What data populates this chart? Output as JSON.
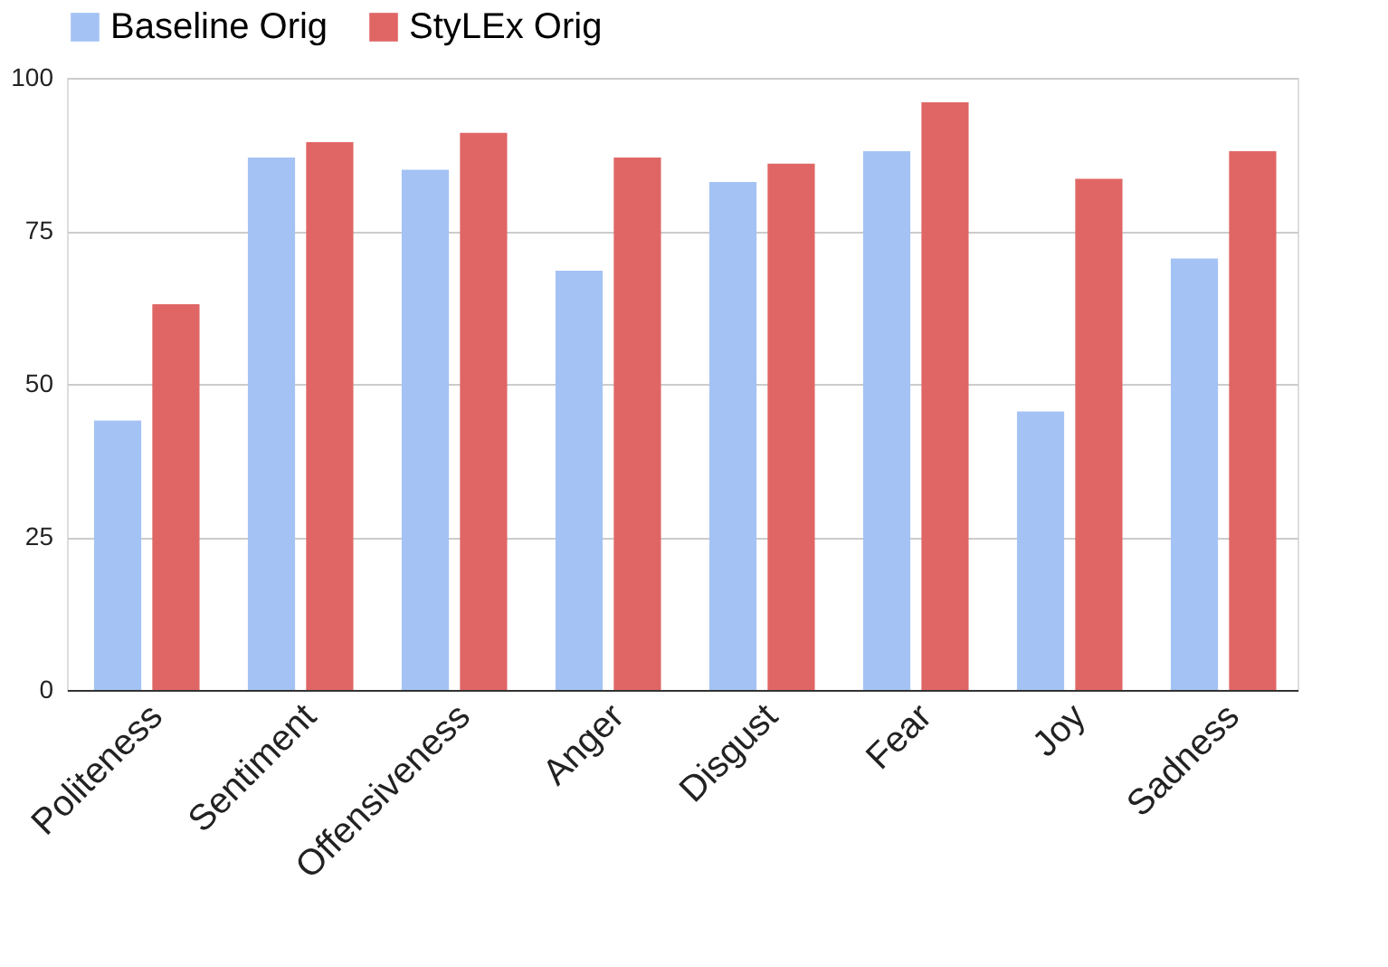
{
  "chart_data": {
    "type": "bar",
    "categories": [
      "Politeness",
      "Sentiment",
      "Offensiveness",
      "Anger",
      "Disgust",
      "Fear",
      "Joy",
      "Sadness"
    ],
    "series": [
      {
        "name": "Baseline Orig",
        "color": "#a4c2f4",
        "values": [
          44,
          87,
          85,
          68.5,
          83,
          88,
          45.5,
          70.5
        ]
      },
      {
        "name": "StyLEx Orig",
        "color": "#e06666",
        "values": [
          63,
          89.5,
          91,
          87,
          86,
          96,
          83.5,
          88
        ]
      }
    ],
    "ylim": [
      0,
      100
    ],
    "yticks": [
      0,
      25,
      50,
      75,
      100
    ],
    "grid": "y",
    "legend": "top"
  }
}
